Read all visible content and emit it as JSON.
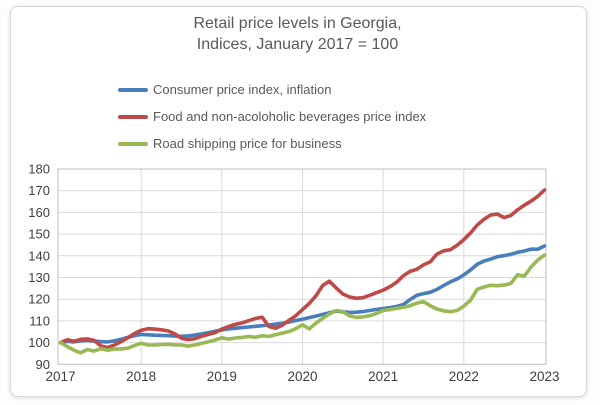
{
  "window": {
    "background": "#fdfdfd"
  },
  "card": {
    "background": "#ffffff",
    "border_color": "#d8d8d8"
  },
  "chart_data": {
    "type": "line",
    "title": "Retail price levels in Georgia,",
    "subtitle": "Indices, January 2017 = 100",
    "title_color": "#595959",
    "legend_position": "top-left",
    "grid": true,
    "x_start_year": 2017,
    "x_end_year": 2023,
    "x_tick_labels": [
      "2017",
      "2018",
      "2019",
      "2020",
      "2021",
      "2022",
      "2023"
    ],
    "y_tick_labels": [
      "90",
      "100",
      "110",
      "120",
      "130",
      "140",
      "150",
      "160",
      "170",
      "180"
    ],
    "ylim": [
      90,
      180
    ],
    "axis": {
      "tick_label_color": "#404040",
      "grid_color": "#d9d9d9",
      "border_color": "#bfbfbf"
    },
    "x_unit": "month",
    "series": [
      {
        "id": "cpi",
        "name": "Consumer price index, inflation",
        "color": "#4A7EBB",
        "values": [
          100.0,
          100.6,
          100.3,
          100.8,
          101.0,
          100.7,
          100.4,
          100.3,
          100.8,
          101.5,
          102.4,
          103.2,
          103.8,
          103.6,
          103.4,
          103.3,
          103.2,
          103.0,
          102.9,
          103.1,
          103.5,
          104.0,
          104.6,
          105.2,
          105.8,
          106.3,
          106.6,
          106.9,
          107.2,
          107.5,
          107.8,
          108.1,
          108.5,
          108.9,
          109.5,
          110.2,
          110.8,
          111.5,
          112.2,
          113.0,
          113.8,
          114.5,
          114.2,
          113.9,
          114.0,
          114.3,
          114.8,
          115.3,
          115.7,
          116.1,
          116.7,
          117.5,
          119.8,
          121.8,
          122.6,
          123.2,
          124.5,
          126.3,
          128.0,
          129.3,
          131.2,
          133.5,
          136.1,
          137.6,
          138.5,
          139.6,
          140.1,
          140.7,
          141.6,
          142.2,
          143.1,
          143.0,
          144.5
        ]
      },
      {
        "id": "food",
        "name": "Food and non-acoloholic beverages price index",
        "color": "#BE4B48",
        "values": [
          100.0,
          101.3,
          100.6,
          101.5,
          101.7,
          101.0,
          98.5,
          97.7,
          98.9,
          100.4,
          102.2,
          104.2,
          105.7,
          106.4,
          106.2,
          105.9,
          105.4,
          104.0,
          102.0,
          101.4,
          101.8,
          102.9,
          103.8,
          104.6,
          106.2,
          107.4,
          108.4,
          109.1,
          110.1,
          111.1,
          111.7,
          107.4,
          106.6,
          108.0,
          110.3,
          112.4,
          115.2,
          118.0,
          121.5,
          126.3,
          128.3,
          125.2,
          122.4,
          121.0,
          120.4,
          120.7,
          121.8,
          123.0,
          124.2,
          125.7,
          127.8,
          130.8,
          132.8,
          133.8,
          135.8,
          137.2,
          140.8,
          142.3,
          142.8,
          144.9,
          147.4,
          150.6,
          154.2,
          156.8,
          158.8,
          159.2,
          157.6,
          158.6,
          161.2,
          163.3,
          165.2,
          167.4,
          170.3
        ]
      },
      {
        "id": "road",
        "name": "Road shipping price for business",
        "color": "#98B954",
        "values": [
          100.0,
          98.2,
          96.5,
          95.3,
          96.8,
          96.1,
          97.2,
          96.5,
          97.0,
          97.1,
          97.4,
          98.6,
          99.7,
          98.9,
          98.9,
          99.1,
          99.2,
          99.0,
          98.9,
          98.4,
          98.9,
          99.7,
          100.4,
          101.2,
          102.2,
          101.6,
          102.1,
          102.4,
          102.8,
          102.5,
          103.2,
          102.8,
          103.7,
          104.4,
          105.1,
          106.4,
          108.2,
          106.3,
          109.0,
          111.2,
          113.2,
          114.8,
          114.3,
          112.3,
          111.6,
          111.9,
          112.4,
          113.4,
          114.8,
          115.2,
          115.8,
          116.2,
          117.0,
          118.2,
          118.9,
          117.0,
          115.5,
          114.6,
          114.3,
          114.8,
          116.8,
          119.6,
          124.6,
          125.6,
          126.4,
          126.2,
          126.5,
          127.3,
          131.3,
          130.6,
          134.9,
          138.0,
          140.3
        ]
      }
    ]
  }
}
